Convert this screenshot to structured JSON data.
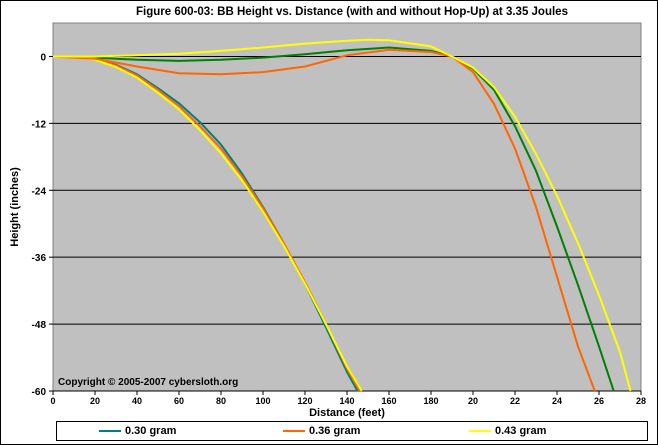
{
  "chart_data": {
    "type": "line",
    "title": "Figure 600-03:  BB Height vs. Distance (with and without Hop-Up) at 3.35 Joules",
    "xlabel": "Distance (feet)",
    "ylabel": "Height (inches)",
    "xlim": [
      0,
      280
    ],
    "ylim": [
      -60,
      6
    ],
    "xticks": [
      "0",
      "20",
      "40",
      "60",
      "80",
      "100",
      "120",
      "140",
      "160",
      "180",
      "20",
      "22",
      "24",
      "26",
      "28"
    ],
    "xtick_values": [
      0,
      20,
      40,
      60,
      80,
      100,
      120,
      140,
      160,
      180,
      200,
      220,
      240,
      260,
      280
    ],
    "yticks": [
      "0",
      "-12",
      "-24",
      "-36",
      "-48",
      "-60"
    ],
    "ytick_values": [
      0,
      -12,
      -24,
      -36,
      -48,
      -60
    ],
    "grid": "horizontal",
    "background": "#c0c0c0",
    "copyright": "Copyright © 2005-2007 cybersloth.org",
    "legend": {
      "position": "bottom",
      "entries": [
        {
          "label": "0.30 gram",
          "color": "#008080"
        },
        {
          "label": "0.36 gram",
          "color": "#ff6600"
        },
        {
          "label": "0.43 gram",
          "color": "#ffff00"
        }
      ]
    },
    "series": [
      {
        "name": "0.30 gram",
        "variant": "without hop-up",
        "color": "#008080",
        "x": [
          0,
          10,
          20,
          30,
          40,
          50,
          60,
          70,
          80,
          90,
          100,
          110,
          120,
          130,
          140,
          145
        ],
        "y": [
          0,
          0,
          -0.5,
          -1.5,
          -3.2,
          -5.7,
          -8.4,
          -11.8,
          -15.8,
          -21,
          -27,
          -33.6,
          -40.8,
          -48.6,
          -56.6,
          -60
        ]
      },
      {
        "name": "0.36 gram",
        "variant": "without hop-up",
        "color": "#ff6600",
        "x": [
          0,
          10,
          20,
          30,
          40,
          50,
          60,
          70,
          80,
          90,
          100,
          110,
          120,
          130,
          140,
          146
        ],
        "y": [
          0,
          0,
          -0.5,
          -1.6,
          -3.4,
          -6,
          -8.9,
          -12.5,
          -16.5,
          -21.5,
          -27.2,
          -33.6,
          -40.5,
          -48,
          -56,
          -60
        ]
      },
      {
        "name": "0.43 gram",
        "variant": "without hop-up",
        "color": "#ffff00",
        "x": [
          0,
          10,
          20,
          30,
          40,
          50,
          60,
          70,
          80,
          90,
          100,
          110,
          120,
          130,
          140,
          147
        ],
        "y": [
          0,
          0,
          -0.6,
          -1.9,
          -3.8,
          -6.5,
          -9.5,
          -13.2,
          -17.4,
          -22.2,
          -27.8,
          -34,
          -40.8,
          -48,
          -55.6,
          -60
        ]
      },
      {
        "name": "0.30 gram",
        "variant": "with hop-up",
        "color": "#008000",
        "x": [
          0,
          20,
          40,
          60,
          80,
          100,
          120,
          140,
          160,
          180,
          190,
          200,
          210,
          220,
          230,
          240,
          250,
          260,
          267
        ],
        "y": [
          0,
          -0.2,
          -0.6,
          -0.8,
          -0.6,
          -0.2,
          0.4,
          1.1,
          1.6,
          1,
          0,
          -2.2,
          -6,
          -12.5,
          -20.5,
          -30.5,
          -41,
          -52,
          -60
        ]
      },
      {
        "name": "0.36 gram",
        "variant": "with hop-up",
        "color": "#ff6600",
        "x": [
          0,
          20,
          40,
          60,
          80,
          100,
          120,
          140,
          160,
          180,
          190,
          200,
          210,
          220,
          230,
          240,
          250,
          258
        ],
        "y": [
          0,
          -0.4,
          -1.8,
          -3,
          -3.2,
          -2.8,
          -1.8,
          0.2,
          1.2,
          0.8,
          0,
          -2.8,
          -8.5,
          -16.5,
          -27,
          -39.5,
          -52,
          -60
        ]
      },
      {
        "name": "0.43 gram",
        "variant": "with hop-up",
        "color": "#ffff00",
        "x": [
          0,
          20,
          40,
          60,
          80,
          100,
          120,
          140,
          150,
          160,
          180,
          190,
          200,
          210,
          220,
          230,
          240,
          250,
          260,
          270,
          275
        ],
        "y": [
          0,
          0,
          0.2,
          0.5,
          1,
          1.6,
          2.3,
          2.8,
          3,
          2.9,
          1.8,
          0,
          -2,
          -5.5,
          -10.8,
          -17.5,
          -25,
          -33.5,
          -42.8,
          -53,
          -60
        ]
      }
    ]
  }
}
